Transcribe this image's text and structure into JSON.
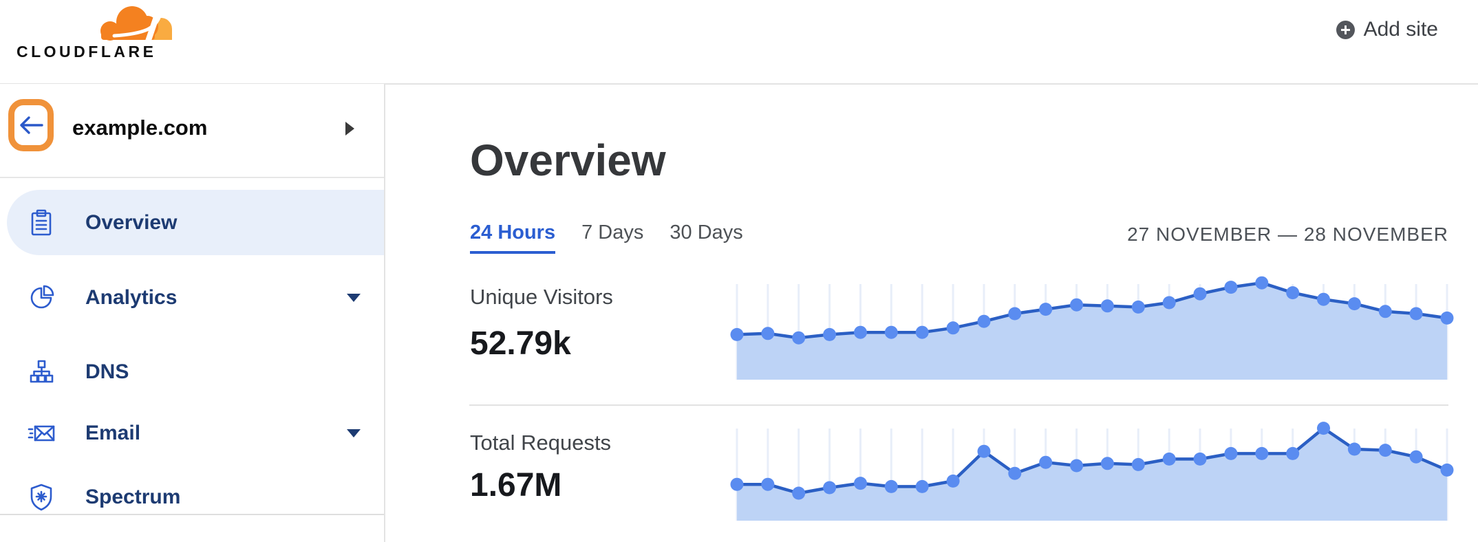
{
  "header": {
    "logo_text": "CLOUDFLARE",
    "add_site_label": "Add site"
  },
  "sidebar": {
    "site": {
      "name": "example.com"
    },
    "items": [
      {
        "label": "Overview",
        "icon": "clipboard-icon",
        "active": true,
        "expandable": false
      },
      {
        "label": "Analytics",
        "icon": "pie-chart-icon",
        "active": false,
        "expandable": true
      },
      {
        "label": "DNS",
        "icon": "network-icon",
        "active": false,
        "expandable": false
      },
      {
        "label": "Email",
        "icon": "email-icon",
        "active": false,
        "expandable": true
      },
      {
        "label": "Spectrum",
        "icon": "shield-icon",
        "active": false,
        "expandable": false
      }
    ]
  },
  "main": {
    "title": "Overview",
    "tabs": [
      {
        "label": "24 Hours",
        "active": true
      },
      {
        "label": "7 Days",
        "active": false
      },
      {
        "label": "30 Days",
        "active": false
      }
    ],
    "date_range": "27 NOVEMBER — 28 NOVEMBER",
    "metrics": [
      {
        "label": "Unique Visitors",
        "value": "52.79k"
      },
      {
        "label": "Total Requests",
        "value": "1.67M"
      }
    ]
  },
  "chart_data": [
    {
      "type": "area",
      "title": "Unique Visitors",
      "total": "52.79k",
      "points": 24,
      "x_axis": "24 hourly points spanning 27 November — 28 November (no tick labels shown)",
      "y_axis": "relative height 0–1 (no numeric scale shown on chart)",
      "grid": "vertical gridline at each data point",
      "legend": "none",
      "values": [
        0.41,
        0.42,
        0.38,
        0.41,
        0.43,
        0.43,
        0.43,
        0.47,
        0.53,
        0.6,
        0.64,
        0.68,
        0.67,
        0.66,
        0.7,
        0.78,
        0.84,
        0.88,
        0.79,
        0.73,
        0.69,
        0.62,
        0.6,
        0.56
      ]
    },
    {
      "type": "area",
      "title": "Total Requests",
      "total": "1.67M",
      "points": 24,
      "x_axis": "24 hourly points spanning 27 November — 28 November (no tick labels shown)",
      "y_axis": "relative height 0–1 (no numeric scale shown on chart)",
      "grid": "vertical gridline at each data point",
      "legend": "none",
      "values": [
        0.33,
        0.33,
        0.25,
        0.3,
        0.34,
        0.31,
        0.31,
        0.36,
        0.63,
        0.43,
        0.53,
        0.5,
        0.52,
        0.51,
        0.56,
        0.56,
        0.61,
        0.61,
        0.61,
        0.84,
        0.65,
        0.64,
        0.58,
        0.46
      ]
    }
  ],
  "colors": {
    "brand_orange": "#f48120",
    "brand_orange_light": "#f9ab41",
    "highlight_ring_orange": "#f0923a",
    "link_blue": "#2b5ed1",
    "nav_icon_blue": "#2d5cce",
    "nav_text_navy": "#1d3b72",
    "active_item_bg": "#e8effa",
    "chart_line": "#2b5fc4",
    "chart_fill": "#bdd3f6",
    "chart_dot": "#5a8cf0",
    "chart_grid": "#e8eef9",
    "border_gray": "#e3e3e3"
  }
}
